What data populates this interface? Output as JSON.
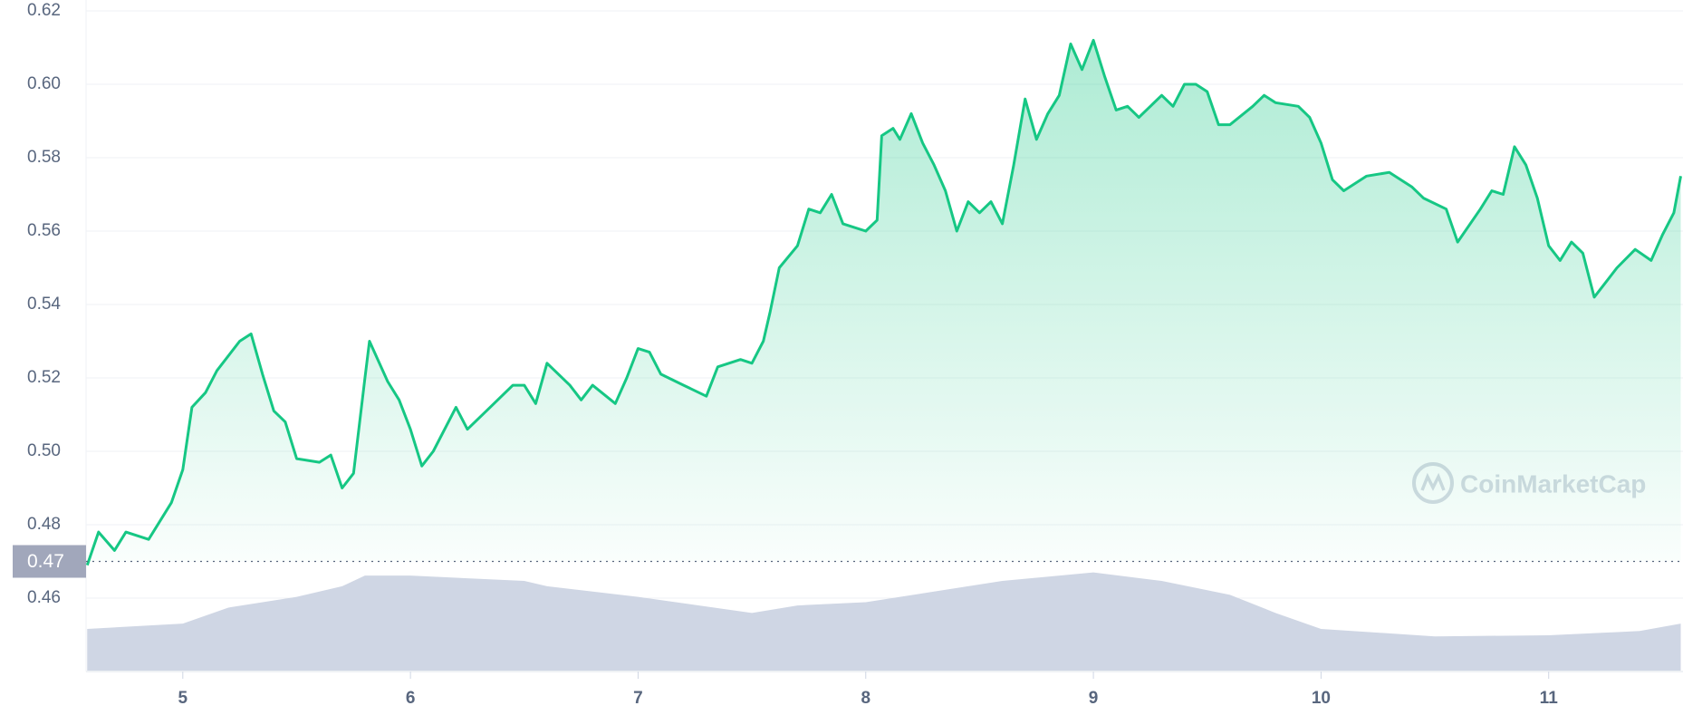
{
  "chart_data": {
    "type": "line",
    "x": [
      4.58,
      4.63,
      4.7,
      4.75,
      4.85,
      4.95,
      5.0,
      5.04,
      5.1,
      5.15,
      5.25,
      5.3,
      5.35,
      5.4,
      5.45,
      5.5,
      5.6,
      5.65,
      5.7,
      5.75,
      5.8,
      5.82,
      5.9,
      5.95,
      6.0,
      6.05,
      6.1,
      6.2,
      6.25,
      6.35,
      6.45,
      6.5,
      6.55,
      6.6,
      6.7,
      6.75,
      6.8,
      6.9,
      6.95,
      7.0,
      7.05,
      7.1,
      7.2,
      7.3,
      7.35,
      7.45,
      7.5,
      7.55,
      7.58,
      7.62,
      7.7,
      7.75,
      7.8,
      7.85,
      7.9,
      8.0,
      8.05,
      8.07,
      8.12,
      8.15,
      8.2,
      8.25,
      8.3,
      8.35,
      8.4,
      8.45,
      8.5,
      8.55,
      8.6,
      8.65,
      8.7,
      8.75,
      8.8,
      8.85,
      8.9,
      8.95,
      9.0,
      9.05,
      9.1,
      9.15,
      9.2,
      9.3,
      9.35,
      9.4,
      9.45,
      9.5,
      9.55,
      9.6,
      9.7,
      9.75,
      9.8,
      9.9,
      9.95,
      10.0,
      10.05,
      10.1,
      10.2,
      10.3,
      10.4,
      10.45,
      10.55,
      10.6,
      10.7,
      10.75,
      10.8,
      10.85,
      10.9,
      10.95,
      11.0,
      11.05,
      11.1,
      11.15,
      11.2,
      11.25,
      11.3,
      11.38,
      11.45,
      11.5,
      11.55,
      11.58
    ],
    "series": [
      {
        "color": "#16c784",
        "values": [
          0.469,
          0.478,
          0.473,
          0.478,
          0.476,
          0.486,
          0.495,
          0.512,
          0.516,
          0.522,
          0.53,
          0.532,
          0.521,
          0.511,
          0.508,
          0.498,
          0.497,
          0.499,
          0.49,
          0.494,
          0.52,
          0.53,
          0.519,
          0.514,
          0.506,
          0.496,
          0.5,
          0.512,
          0.506,
          0.512,
          0.518,
          0.518,
          0.513,
          0.524,
          0.518,
          0.514,
          0.518,
          0.513,
          0.52,
          0.528,
          0.527,
          0.521,
          0.518,
          0.515,
          0.523,
          0.525,
          0.524,
          0.53,
          0.538,
          0.55,
          0.556,
          0.566,
          0.565,
          0.57,
          0.562,
          0.56,
          0.563,
          0.586,
          0.588,
          0.585,
          0.592,
          0.584,
          0.578,
          0.571,
          0.56,
          0.568,
          0.565,
          0.568,
          0.562,
          0.578,
          0.596,
          0.585,
          0.592,
          0.597,
          0.611,
          0.604,
          0.612,
          0.602,
          0.593,
          0.594,
          0.591,
          0.597,
          0.594,
          0.6,
          0.6,
          0.598,
          0.589,
          0.589,
          0.594,
          0.597,
          0.595,
          0.594,
          0.591,
          0.584,
          0.574,
          0.571,
          0.575,
          0.576,
          0.572,
          0.569,
          0.566,
          0.557,
          0.566,
          0.571,
          0.57,
          0.583,
          0.578,
          0.569,
          0.556,
          0.552,
          0.557,
          0.554,
          0.542,
          0.546,
          0.55,
          0.555,
          0.552,
          0.559,
          0.565,
          0.575
        ]
      }
    ],
    "volume": {
      "color": "#cfd6e4",
      "x": [
        4.58,
        5.0,
        5.2,
        5.5,
        5.7,
        5.8,
        6.0,
        6.2,
        6.5,
        6.6,
        7.0,
        7.5,
        7.7,
        8.0,
        8.3,
        8.6,
        9.0,
        9.3,
        9.6,
        9.8,
        10.0,
        10.5,
        11.0,
        11.4,
        11.58
      ],
      "values": [
        40,
        45,
        60,
        70,
        80,
        90,
        90,
        88,
        85,
        80,
        70,
        55,
        62,
        65,
        75,
        85,
        93,
        85,
        72,
        55,
        40,
        33,
        34,
        38,
        45
      ]
    },
    "reference_line": {
      "value": 0.47
    },
    "watermark": "CoinMarketCap",
    "xlim": [
      4.575,
      11.59
    ],
    "xticks": [
      5,
      6,
      7,
      8,
      9,
      10,
      11
    ],
    "ylim": [
      0.44,
      0.62
    ],
    "yticks": [
      {
        "value": 0.46,
        "label": "0.46"
      },
      {
        "value": 0.48,
        "label": "0.48"
      },
      {
        "value": 0.5,
        "label": "0.50"
      },
      {
        "value": 0.52,
        "label": "0.52"
      },
      {
        "value": 0.54,
        "label": "0.54"
      },
      {
        "value": 0.56,
        "label": "0.56"
      },
      {
        "value": 0.58,
        "label": "0.58"
      },
      {
        "value": 0.6,
        "label": "0.60"
      },
      {
        "value": 0.62,
        "label": "0.62"
      }
    ],
    "grid": true
  }
}
